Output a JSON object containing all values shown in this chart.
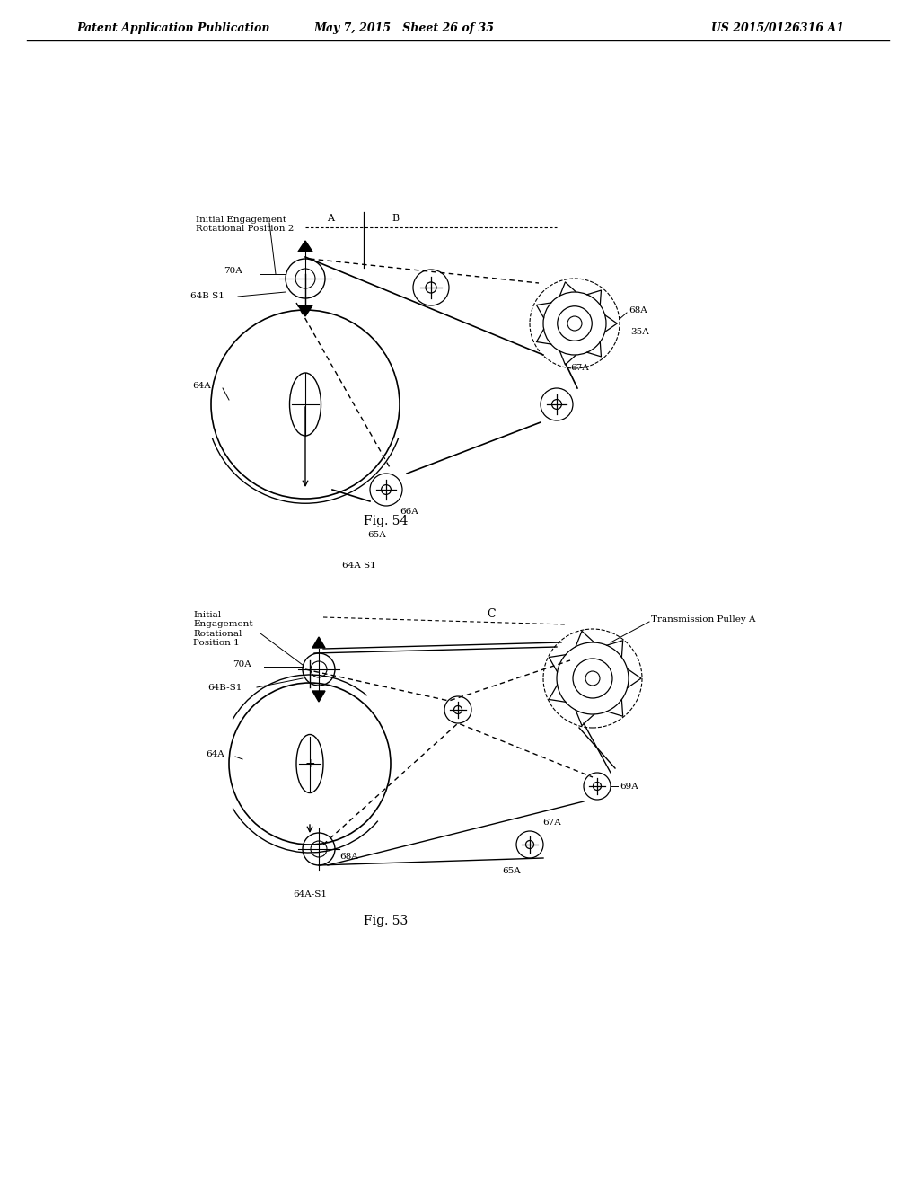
{
  "bg_color": "#ffffff",
  "text_color": "#000000",
  "line_color": "#000000",
  "header_left": "Patent Application Publication",
  "header_mid": "May 7, 2015   Sheet 26 of 35",
  "header_right": "US 2015/0126316 A1",
  "fig54_caption": "Fig. 54",
  "fig53_caption": "Fig. 53",
  "fig54_label": "Initial Engagement\nRotational Position 2",
  "fig53_label": "Initial\nEngagement\nRotational\nPosition 1",
  "fig53_transmission_label": "Transmission Pulley A"
}
